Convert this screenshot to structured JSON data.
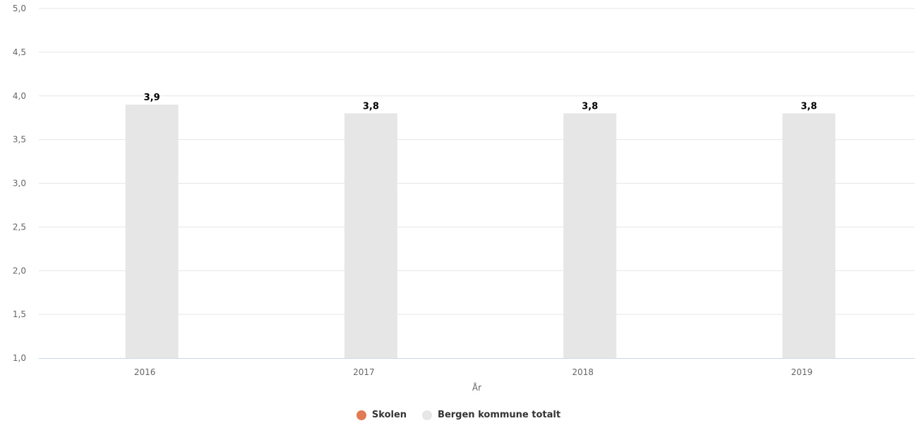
{
  "chart_data": {
    "type": "bar",
    "categories": [
      "2016",
      "2017",
      "2018",
      "2019"
    ],
    "series": [
      {
        "name": "Skolen",
        "color": "#e07b53",
        "values": [
          null,
          null,
          null,
          null
        ]
      },
      {
        "name": "Bergen kommune totalt",
        "color": "#e6e6e6",
        "values": [
          3.9,
          3.8,
          3.8,
          3.8
        ]
      }
    ],
    "data_labels": [
      "3,9",
      "3,8",
      "3,8",
      "3,8"
    ],
    "ylim": [
      1.0,
      5.0
    ],
    "yticks": [
      "1,0",
      "1,5",
      "2,0",
      "2,5",
      "3,0",
      "3,5",
      "4,0",
      "4,5",
      "5,0"
    ],
    "ytick_values": [
      1.0,
      1.5,
      2.0,
      2.5,
      3.0,
      3.5,
      4.0,
      4.5,
      5.0
    ],
    "xlabel": "År",
    "ylabel": "",
    "grid": true,
    "legend_position": "bottom-center"
  }
}
